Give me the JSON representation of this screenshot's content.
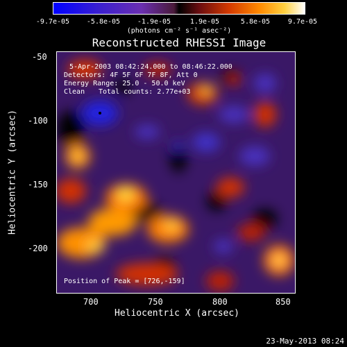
{
  "colorbar": {
    "ticks": [
      "-9.7e-05",
      "-5.8e-05",
      "-1.9e-05",
      "1.9e-05",
      "5.8e-05",
      "9.7e-05"
    ],
    "units": "(photons cm⁻² s⁻¹ asec⁻²)"
  },
  "title": "Reconstructed RHESSI Image",
  "info": {
    "time_range": "5-Apr-2003 08:42:24.000 to 08:46:22.000",
    "detectors": "Detectors: 4F 5F 6F 7F 8F, Att 0",
    "energy": "Energy Range: 25.0 - 50.0 keV",
    "method": "Clean",
    "counts": "Total counts: 2.77e+03",
    "peak": "Position of Peak = [726,-159]"
  },
  "axes": {
    "xlabel": "Heliocentric X (arcsec)",
    "ylabel": "Heliocentric Y (arcsec)",
    "xticks": [
      "700",
      "750",
      "800",
      "850"
    ],
    "yticks": [
      "-50",
      "-100",
      "-150",
      "-200"
    ]
  },
  "footer": {
    "date": "23-May-2013 08:24"
  }
}
